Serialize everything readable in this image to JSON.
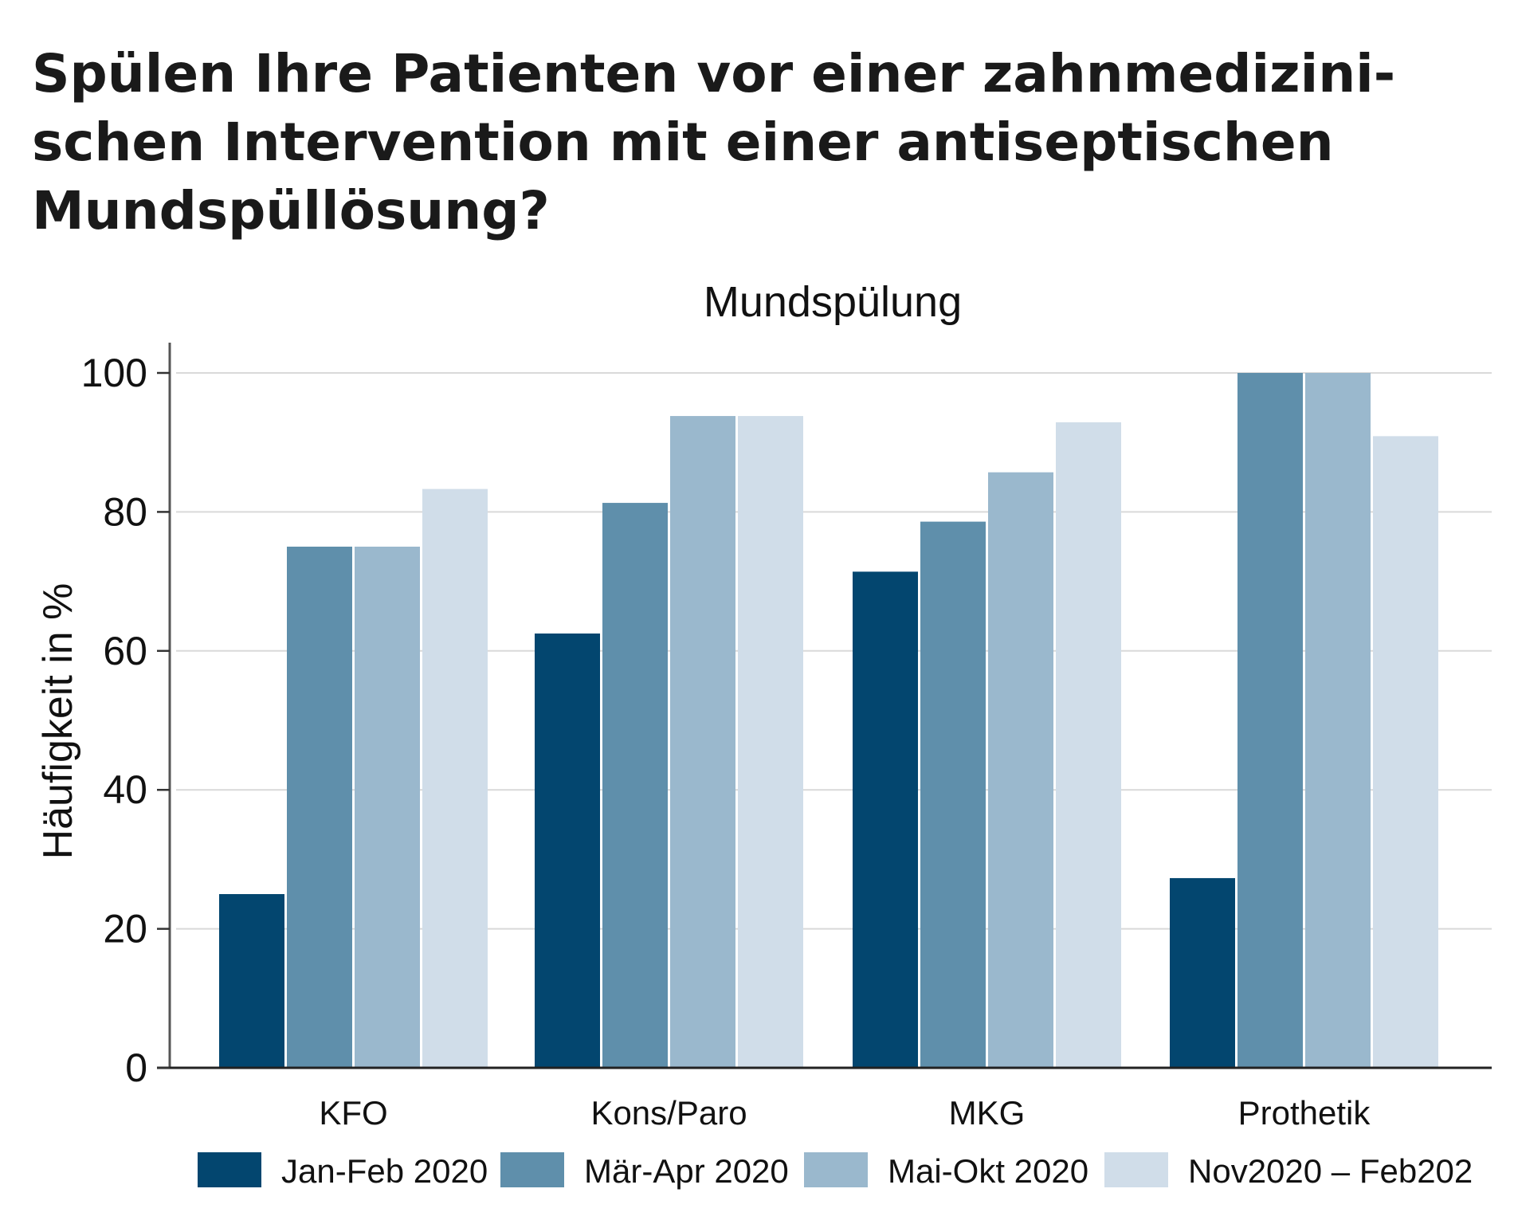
{
  "headline": {
    "lines": [
      "Spülen Ihre Patienten vor einer zahnmedizini-",
      "schen Intervention mit einer antiseptischen",
      "Mundspüllösung?"
    ]
  },
  "chart_data": {
    "type": "bar",
    "title": "Mundspülung",
    "xlabel": "",
    "ylabel": "Häufigkeit in %",
    "ylim": [
      0,
      100
    ],
    "yticks": [
      0,
      20,
      40,
      60,
      80,
      100
    ],
    "ytick_labels": [
      "0",
      "20",
      "40",
      "60",
      "80",
      "100"
    ],
    "grid": true,
    "legend_position": "bottom",
    "categories": [
      "KFO",
      "Kons/Paro",
      "MKG",
      "Prothetik"
    ],
    "series": [
      {
        "name": "Jan-Feb 2020",
        "color": "#03466f",
        "values": [
          25.0,
          62.5,
          71.4,
          27.3
        ]
      },
      {
        "name": "Mär-Apr 2020",
        "color": "#5f8fab",
        "values": [
          75.0,
          81.3,
          78.6,
          100.0
        ]
      },
      {
        "name": "Mai-Okt 2020",
        "color": "#9ab8cd",
        "values": [
          75.0,
          93.8,
          85.7,
          100.0
        ]
      },
      {
        "name": "Nov2020 – Feb202",
        "color": "#d0dde9",
        "values": [
          83.3,
          93.8,
          92.9,
          90.9
        ]
      }
    ]
  }
}
